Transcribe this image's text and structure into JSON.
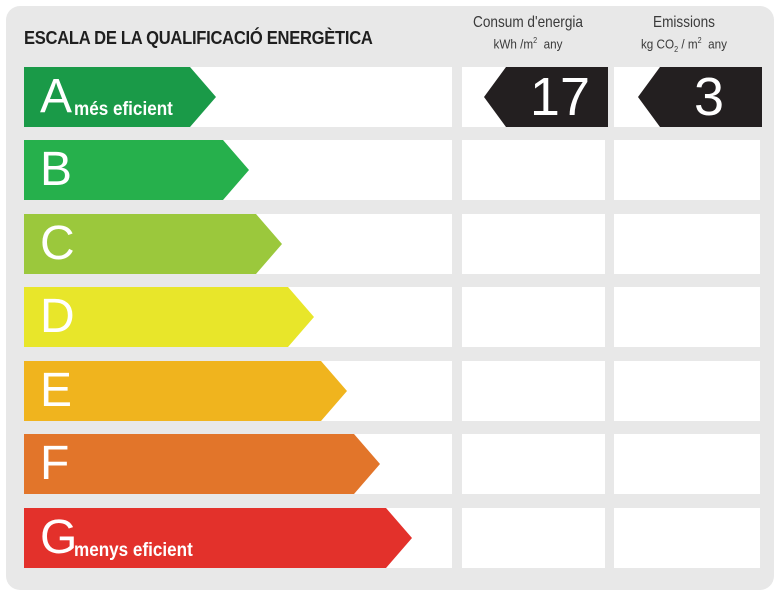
{
  "title": "ESCALA DE LA QUALIFICACIÓ ENERGÈTICA",
  "consum": {
    "heading": "Consum d'energia",
    "unit_pre": "kWh /m",
    "unit_sup": "2",
    "unit_post": "any",
    "value": "17"
  },
  "emissions": {
    "heading": "Emissions",
    "unit_pre": "kg CO",
    "unit_sub": "2",
    "unit_mid": "/ m",
    "unit_sup": "2",
    "unit_post": "any",
    "value": "3"
  },
  "rating_letter": "A",
  "classes": [
    {
      "letter": "A",
      "label": "més eficient",
      "color": "#1a9a48"
    },
    {
      "letter": "B",
      "label": "",
      "color": "#26b04c"
    },
    {
      "letter": "C",
      "label": "",
      "color": "#9bc83c"
    },
    {
      "letter": "D",
      "label": "",
      "color": "#e8e62a"
    },
    {
      "letter": "E",
      "label": "",
      "color": "#f0b41e"
    },
    {
      "letter": "F",
      "label": "",
      "color": "#e2752a"
    },
    {
      "letter": "G",
      "label": "menys eficient",
      "color": "#e3312b"
    }
  ],
  "colors": {
    "panel": "#e8e8e8",
    "indicator": "#231f20"
  }
}
